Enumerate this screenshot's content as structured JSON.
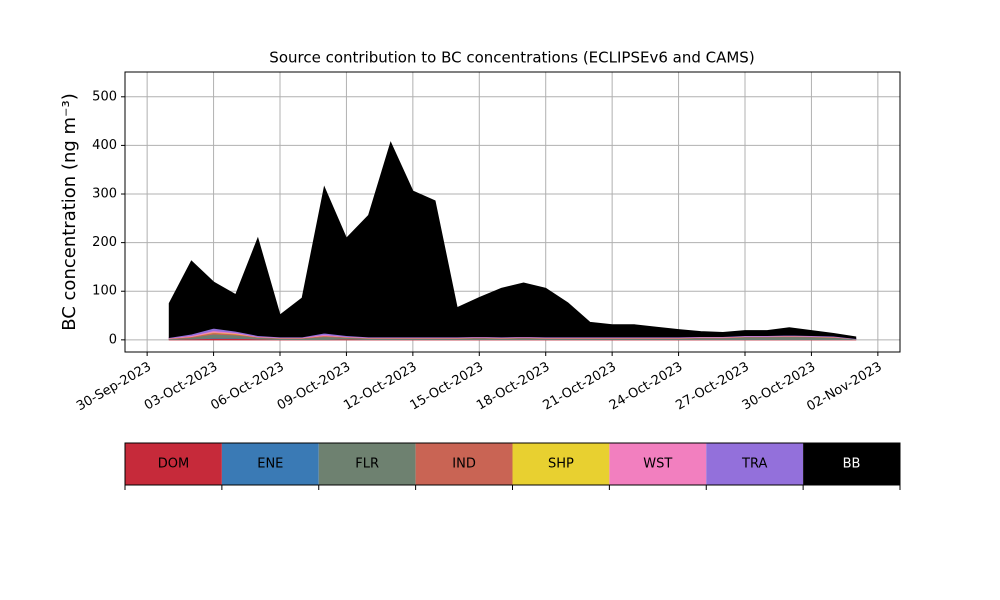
{
  "chart_data": {
    "type": "stacked_area",
    "title": "Source contribution to BC concentrations (ECLIPSEv6 and CAMS)",
    "y_label": "BC concentration (ng m⁻³)",
    "x": [
      "2023-10-01",
      "2023-10-02",
      "2023-10-03",
      "2023-10-04",
      "2023-10-05",
      "2023-10-06",
      "2023-10-07",
      "2023-10-08",
      "2023-10-09",
      "2023-10-10",
      "2023-10-11",
      "2023-10-12",
      "2023-10-13",
      "2023-10-14",
      "2023-10-15",
      "2023-10-16",
      "2023-10-17",
      "2023-10-18",
      "2023-10-19",
      "2023-10-20",
      "2023-10-21",
      "2023-10-22",
      "2023-10-23",
      "2023-10-24",
      "2023-10-25",
      "2023-10-26",
      "2023-10-27",
      "2023-10-28",
      "2023-10-29",
      "2023-10-30",
      "2023-10-31",
      "2023-11-01"
    ],
    "series": [
      {
        "name": "DOM",
        "color": "#c62a3a",
        "values": [
          1,
          2,
          3,
          3,
          2,
          1,
          1,
          1,
          2,
          1,
          1,
          1,
          1,
          1,
          1,
          1,
          1,
          1,
          1,
          1,
          1,
          1,
          1,
          1,
          1,
          1,
          1,
          1,
          1,
          1,
          1,
          1
        ]
      },
      {
        "name": "ENE",
        "color": "#3a7ab5",
        "values": [
          0,
          0,
          1,
          1,
          0,
          0,
          0,
          0,
          0,
          0,
          0,
          0,
          0,
          0,
          0,
          0,
          0,
          0,
          0,
          0,
          0,
          0,
          0,
          0,
          0,
          0,
          0,
          0,
          0,
          0,
          0,
          0
        ]
      },
      {
        "name": "FLR",
        "color": "#6e8170",
        "values": [
          1,
          3,
          8,
          6,
          3,
          2,
          2,
          6,
          3,
          2,
          2,
          2,
          2,
          2,
          3,
          2,
          3,
          2,
          2,
          2,
          2,
          2,
          2,
          2,
          3,
          3,
          5,
          5,
          6,
          5,
          4,
          1
        ]
      },
      {
        "name": "IND",
        "color": "#c96454",
        "values": [
          1,
          2,
          3,
          2,
          1,
          1,
          1,
          2,
          1,
          1,
          1,
          1,
          1,
          1,
          1,
          1,
          1,
          1,
          1,
          1,
          1,
          1,
          1,
          1,
          1,
          1,
          1,
          1,
          1,
          1,
          1,
          0
        ]
      },
      {
        "name": "SHP",
        "color": "#e8d030",
        "values": [
          0,
          0,
          1,
          1,
          0,
          0,
          0,
          0,
          0,
          0,
          0,
          0,
          0,
          0,
          0,
          0,
          0,
          0,
          0,
          0,
          0,
          0,
          0,
          0,
          0,
          0,
          0,
          0,
          0,
          0,
          0,
          0
        ]
      },
      {
        "name": "WST",
        "color": "#f27fbf",
        "values": [
          1,
          2,
          3,
          2,
          1,
          1,
          1,
          2,
          1,
          1,
          1,
          1,
          1,
          1,
          1,
          1,
          1,
          1,
          1,
          1,
          1,
          1,
          1,
          1,
          1,
          1,
          1,
          1,
          1,
          1,
          1,
          0
        ]
      },
      {
        "name": "TRA",
        "color": "#9370db",
        "values": [
          1,
          3,
          5,
          3,
          2,
          1,
          1,
          3,
          2,
          1,
          1,
          1,
          1,
          1,
          1,
          1,
          1,
          1,
          1,
          1,
          1,
          1,
          1,
          1,
          1,
          1,
          1,
          1,
          1,
          1,
          1,
          1
        ]
      },
      {
        "name": "BB",
        "color": "#000000",
        "values": [
          70,
          150,
          95,
          75,
          200,
          45,
          80,
          300,
          200,
          250,
          400,
          300,
          280,
          60,
          80,
          100,
          110,
          100,
          70,
          30,
          25,
          25,
          20,
          15,
          10,
          8,
          10,
          10,
          15,
          10,
          5,
          3
        ]
      }
    ],
    "xlim": [
      "2023-09-29",
      "2023-11-03"
    ],
    "xticks": [
      {
        "value": "2023-09-30",
        "label": "30-Sep-2023"
      },
      {
        "value": "2023-10-03",
        "label": "03-Oct-2023"
      },
      {
        "value": "2023-10-06",
        "label": "06-Oct-2023"
      },
      {
        "value": "2023-10-09",
        "label": "09-Oct-2023"
      },
      {
        "value": "2023-10-12",
        "label": "12-Oct-2023"
      },
      {
        "value": "2023-10-15",
        "label": "15-Oct-2023"
      },
      {
        "value": "2023-10-18",
        "label": "18-Oct-2023"
      },
      {
        "value": "2023-10-21",
        "label": "21-Oct-2023"
      },
      {
        "value": "2023-10-24",
        "label": "24-Oct-2023"
      },
      {
        "value": "2023-10-27",
        "label": "27-Oct-2023"
      },
      {
        "value": "2023-10-30",
        "label": "30-Oct-2023"
      },
      {
        "value": "2023-11-02",
        "label": "02-Nov-2023"
      }
    ],
    "ylim": [
      -25,
      551
    ],
    "yticks": [
      0,
      100,
      200,
      300,
      400,
      500
    ],
    "grid": true
  }
}
